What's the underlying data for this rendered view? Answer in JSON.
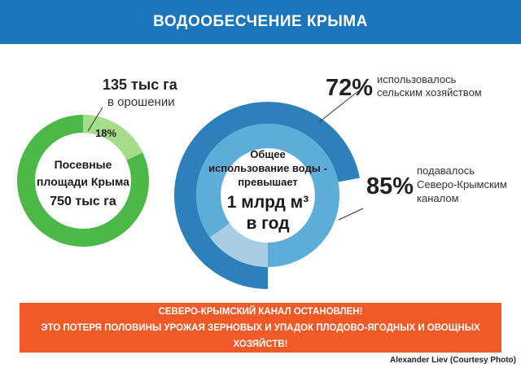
{
  "header": {
    "title": "ВОДООБЕСЧЕНИЕ КРЫМА"
  },
  "chart_data": [
    {
      "type": "pie",
      "center_text": [
        "Посевные",
        "площади Крыма",
        "750 тыс га"
      ],
      "slices": [
        {
          "label": "18%",
          "value": 18,
          "color": "#a6dd8a"
        },
        {
          "label": "",
          "value": 82,
          "color": "#4cb848"
        }
      ],
      "callout": {
        "value": "135 тыс га",
        "text": "в орошении"
      }
    },
    {
      "type": "pie",
      "center_text": [
        "Общее",
        "использование воды -",
        "превышает",
        "1 млрд м³",
        "в год"
      ],
      "rings": [
        {
          "label": "72%",
          "value": 72,
          "text": [
            "использовалось",
            "сельским хозяйством"
          ],
          "color": "#2e80bb",
          "rest_color": "#ffffff"
        },
        {
          "label": "85%",
          "value": 85,
          "text": [
            "подавалось",
            "Северо-Крымским",
            "каналом"
          ],
          "color": "#5eadd8",
          "rest_color": "#a9cde2"
        }
      ]
    }
  ],
  "banner": {
    "line1": "СЕВЕРО-КРЫМСКИЙ КАНАЛ ОСТАНОВЛЕН!",
    "line2": "ЭТО ПОТЕРЯ ПОЛОВИНЫ УРОЖАЯ ЗЕРНОВЫХ И УПАДОК ПЛОДОВО-ЯГОДНЫХ И ОВОЩНЫХ ХОЗЯЙСТВ!"
  },
  "credit": "Alexander Liev (Courtesy Photo)"
}
